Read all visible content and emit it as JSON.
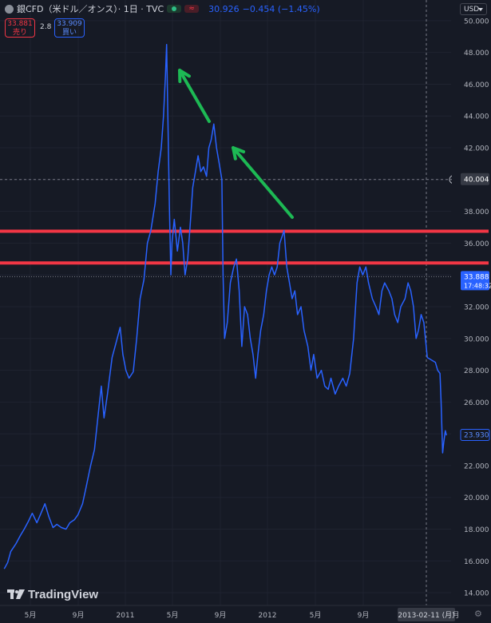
{
  "header": {
    "title": "銀CFD（米ドル／オンス）· 1日 · TVC",
    "status_red": "≈",
    "close": "30.926",
    "change": "−0.454 (−1.45%)",
    "sell_price": "33.881",
    "sell_label": "売り",
    "spread": "2.8",
    "buy_price": "33.909",
    "buy_label": "買い",
    "currency": "USD"
  },
  "branding": {
    "logo_text": "TradingView"
  },
  "settings_icon": "⚙",
  "colors": {
    "background": "#161a25",
    "series": "#2962ff",
    "support_resistance": "#f23645",
    "arrow": "#1db954"
  },
  "chart_data": {
    "type": "line",
    "y_axis_labels": [
      "14.000",
      "16.000",
      "18.000",
      "20.000",
      "22.000",
      "24.000",
      "26.000",
      "28.000",
      "30.000",
      "32.000",
      "34.000",
      "36.000",
      "38.000",
      "40.000",
      "42.000",
      "44.000",
      "46.000",
      "48.000",
      "50.000"
    ],
    "ylim": [
      13.2,
      51.3
    ],
    "x_axis_labels": [
      "5月",
      "9月",
      "2011",
      "5月",
      "9月",
      "2012",
      "5月",
      "9月",
      "2013-02-11 (月)",
      "月"
    ],
    "price_markers": [
      {
        "label": "40.004",
        "value": 40.004,
        "style": "crosshair"
      },
      {
        "label": "33.888",
        "sublabel": "17:48:32",
        "value": 33.888,
        "style": "current"
      },
      {
        "label": "23.930",
        "value": 23.93,
        "style": "last"
      }
    ],
    "horizontal_lines": [
      36.75,
      34.75
    ],
    "crosshair_x_label": "2013-02-11 (月)",
    "series": [
      {
        "x": [
          "2010-03-01",
          "2010-03-10",
          "2010-03-18",
          "2010-04-01",
          "2010-04-12",
          "2010-04-22",
          "2010-05-03",
          "2010-05-13",
          "2010-05-25",
          "2010-06-03",
          "2010-06-15",
          "2010-06-25",
          "2010-07-06",
          "2010-07-16",
          "2010-07-28",
          "2010-08-09",
          "2010-08-19",
          "2010-08-31",
          "2010-09-09",
          "2010-09-21",
          "2010-09-30",
          "2010-10-12",
          "2010-10-22",
          "2010-11-02",
          "2010-11-09",
          "2010-11-16",
          "2010-11-25",
          "2010-12-07",
          "2010-12-16",
          "2010-12-28",
          "2011-01-04",
          "2011-01-12",
          "2011-01-20",
          "2011-01-31",
          "2011-02-09",
          "2011-02-18",
          "2011-02-28",
          "2011-03-09",
          "2011-03-18",
          "2011-03-29",
          "2011-04-06",
          "2011-04-14",
          "2011-04-20",
          "2011-04-25",
          "2011-04-28",
          "2011-05-02",
          "2011-05-05",
          "2011-05-09",
          "2011-05-12",
          "2011-05-18",
          "2011-05-26",
          "2011-06-03",
          "2011-06-09",
          "2011-06-15",
          "2011-06-22",
          "2011-06-28",
          "2011-07-05",
          "2011-07-12",
          "2011-07-19",
          "2011-07-26",
          "2011-08-02",
          "2011-08-10",
          "2011-08-16",
          "2011-08-22",
          "2011-08-29",
          "2011-09-05",
          "2011-09-12",
          "2011-09-19",
          "2011-09-22",
          "2011-09-26",
          "2011-10-03",
          "2011-10-11",
          "2011-10-20",
          "2011-10-27",
          "2011-11-03",
          "2011-11-10",
          "2011-11-17",
          "2011-11-25",
          "2011-12-02",
          "2011-12-09",
          "2011-12-16",
          "2011-12-22",
          "2011-12-29",
          "2012-01-06",
          "2012-01-13",
          "2012-01-20",
          "2012-01-27",
          "2012-02-03",
          "2012-02-10",
          "2012-02-17",
          "2012-02-24",
          "2012-02-28",
          "2012-03-06",
          "2012-03-13",
          "2012-03-20",
          "2012-03-27",
          "2012-04-03",
          "2012-04-12",
          "2012-04-20",
          "2012-04-30",
          "2012-05-08",
          "2012-05-15",
          "2012-05-24",
          "2012-06-04",
          "2012-06-13",
          "2012-06-22",
          "2012-06-29",
          "2012-07-10",
          "2012-07-19",
          "2012-07-30",
          "2012-08-08",
          "2012-08-17",
          "2012-08-27",
          "2012-09-05",
          "2012-09-12",
          "2012-09-20",
          "2012-09-28",
          "2012-10-05",
          "2012-10-15",
          "2012-10-24",
          "2012-11-01",
          "2012-11-09",
          "2012-11-16",
          "2012-11-27",
          "2012-12-05",
          "2012-12-12",
          "2012-12-20",
          "2012-12-28",
          "2013-01-08",
          "2013-01-16",
          "2013-01-23",
          "2013-01-30",
          "2013-02-06",
          "2013-02-12",
          "2013-02-19",
          "2013-02-26",
          "2013-03-07",
          "2013-03-14",
          "2013-03-21",
          "2013-03-28",
          "2013-04-03",
          "2013-04-09",
          "2013-04-12",
          "2013-04-16",
          "2013-04-19",
          "2013-04-23",
          "2013-04-26"
        ],
        "values": [
          15.5,
          15.9,
          16.6,
          17.1,
          17.6,
          18.0,
          18.5,
          19.0,
          18.4,
          18.9,
          19.6,
          18.8,
          18.1,
          18.3,
          18.1,
          18.0,
          18.4,
          18.6,
          18.9,
          19.6,
          20.6,
          22.0,
          23.0,
          25.5,
          27.0,
          25.0,
          26.5,
          28.8,
          29.6,
          30.7,
          29.0,
          28.0,
          27.5,
          27.9,
          30.0,
          32.5,
          33.7,
          36.0,
          36.8,
          38.5,
          40.5,
          42.0,
          44.0,
          46.5,
          48.5,
          43.0,
          38.5,
          34.0,
          36.0,
          37.5,
          35.5,
          37.0,
          36.0,
          34.0,
          35.0,
          37.0,
          39.5,
          40.5,
          41.5,
          40.5,
          40.8,
          40.2,
          42.0,
          42.5,
          43.5,
          42.0,
          41.0,
          40.0,
          34.0,
          30.0,
          31.0,
          33.5,
          34.5,
          35.0,
          33.0,
          29.5,
          32.0,
          31.5,
          30.0,
          29.0,
          27.5,
          29.0,
          30.5,
          31.5,
          33.0,
          34.0,
          34.5,
          34.0,
          34.5,
          36.0,
          36.5,
          36.8,
          34.5,
          33.5,
          32.5,
          33.0,
          31.5,
          32.0,
          30.5,
          29.5,
          28.0,
          29.0,
          27.5,
          28.0,
          27.0,
          26.8,
          27.5,
          26.5,
          27.0,
          27.5,
          27.0,
          27.8,
          30.0,
          33.5,
          34.5,
          34.0,
          34.5,
          33.5,
          32.5,
          32.0,
          31.5,
          33.0,
          33.5,
          33.0,
          32.5,
          31.5,
          31.0,
          32.0,
          32.5,
          33.5,
          33.0,
          32.0,
          30.0,
          30.5,
          31.5,
          31.0,
          28.8,
          28.7,
          28.6,
          28.5,
          28.0,
          27.8,
          26.0,
          22.8,
          23.5,
          24.2,
          23.9
        ]
      }
    ]
  }
}
